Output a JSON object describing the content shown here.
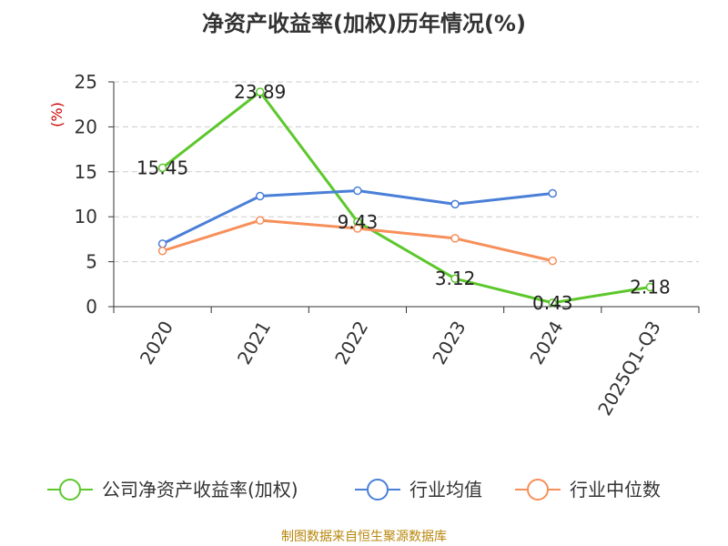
{
  "title": "净资产收益率(加权)历年情况(%)",
  "source": "制图数据来自恒生聚源数据库",
  "colors": {
    "ylabel": "#cc0000",
    "source": "#b8860b",
    "grid": "#cccccc",
    "axis": "#333333"
  },
  "chart_data": {
    "type": "line",
    "title": "净资产收益率(加权)历年情况(%)",
    "xlabel": "",
    "ylabel": "(%)",
    "ylim": [
      0,
      25
    ],
    "yticks": [
      "0",
      "5",
      "10",
      "15",
      "20",
      "25"
    ],
    "categories": [
      "2020",
      "2021",
      "2022",
      "2023",
      "2024",
      "2025Q1-Q3"
    ],
    "grid": true,
    "legend_position": "bottom",
    "series": [
      {
        "name": "公司净资产收益率(加权)",
        "color": "#5cc72b",
        "values": [
          15.45,
          23.89,
          9.43,
          3.12,
          0.43,
          2.18
        ],
        "labels": [
          "15.45",
          "23.89",
          "9.43",
          "3.12",
          "0.43",
          "2.18"
        ]
      },
      {
        "name": "行业均值",
        "color": "#4a7fd8",
        "values": [
          7.0,
          12.3,
          12.9,
          11.4,
          12.6,
          null
        ]
      },
      {
        "name": "行业中位数",
        "color": "#f78f5a",
        "values": [
          6.2,
          9.6,
          8.7,
          7.6,
          5.1,
          null
        ]
      }
    ]
  }
}
